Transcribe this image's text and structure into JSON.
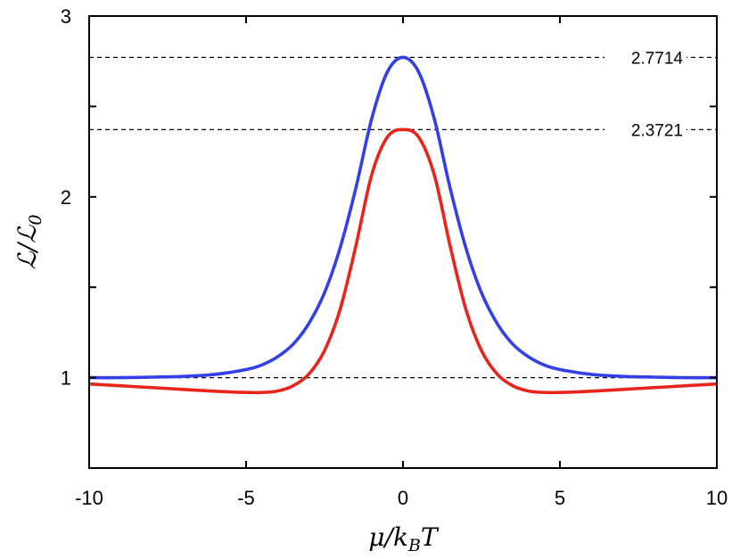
{
  "chart_data": {
    "type": "line",
    "title": "",
    "xlabel": {
      "main": "μ/k",
      "sub": "B",
      "tail": "T"
    },
    "ylabel": {
      "main": "ℒ/ℒ",
      "sub": "0"
    },
    "xlim": [
      -10,
      10
    ],
    "ylim": [
      0.5,
      3
    ],
    "xticks": [
      -10,
      -5,
      0,
      5,
      10
    ],
    "xtick_labels": [
      "-10",
      "-5",
      "0",
      "5",
      "10"
    ],
    "yticks": [
      1,
      2,
      3
    ],
    "ytick_labels": [
      "1",
      "2",
      "3"
    ],
    "y_minor_ticks": [
      0.5,
      1.5,
      2.5
    ],
    "grid": false,
    "reference_lines": [
      {
        "y": 1.0,
        "label": ""
      },
      {
        "y": 2.3721,
        "label": "2.3721"
      },
      {
        "y": 2.7714,
        "label": "2.7714"
      }
    ],
    "series": [
      {
        "color": "#3340e8",
        "x": [
          -10,
          -9,
          -8,
          -7,
          -6,
          -5,
          -4.5,
          -4,
          -3.5,
          -3,
          -2.5,
          -2,
          -1.5,
          -1,
          -0.5,
          0,
          0.5,
          1,
          1.5,
          2,
          2.5,
          3,
          3.5,
          4,
          4.5,
          5,
          6,
          7,
          8,
          9,
          10
        ],
        "y": [
          1.0,
          1.0,
          1.003,
          1.007,
          1.018,
          1.045,
          1.07,
          1.115,
          1.185,
          1.3,
          1.47,
          1.72,
          2.05,
          2.43,
          2.69,
          2.7714,
          2.69,
          2.43,
          2.05,
          1.72,
          1.47,
          1.3,
          1.185,
          1.115,
          1.07,
          1.045,
          1.018,
          1.007,
          1.003,
          1.0,
          1.0
        ]
      },
      {
        "color": "#e8241b",
        "x": [
          -10,
          -9,
          -8,
          -7,
          -6,
          -5,
          -4.5,
          -4,
          -3.5,
          -3,
          -2.5,
          -2,
          -1.5,
          -1,
          -0.5,
          0,
          0.5,
          1,
          1.5,
          2,
          2.5,
          3,
          3.5,
          4,
          4.5,
          5,
          6,
          7,
          8,
          9,
          10
        ],
        "y": [
          0.965,
          0.955,
          0.945,
          0.935,
          0.925,
          0.918,
          0.918,
          0.926,
          0.955,
          1.02,
          1.15,
          1.38,
          1.73,
          2.12,
          2.33,
          2.3721,
          2.33,
          2.12,
          1.73,
          1.38,
          1.15,
          1.02,
          0.955,
          0.926,
          0.918,
          0.918,
          0.925,
          0.935,
          0.945,
          0.955,
          0.965
        ]
      }
    ]
  }
}
